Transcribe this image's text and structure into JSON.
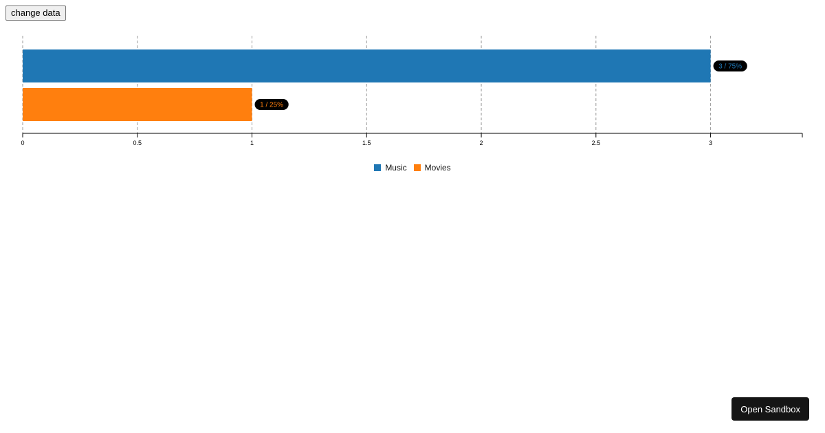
{
  "controls": {
    "change_data_label": "change data",
    "open_sandbox_label": "Open Sandbox"
  },
  "chart_data": {
    "type": "bar",
    "orientation": "horizontal",
    "categories": [
      "Music",
      "Movies"
    ],
    "values": [
      3,
      1
    ],
    "data_labels": [
      "3 / 75%",
      "1 / 25%"
    ],
    "colors": [
      "#1f77b4",
      "#ff7f0e"
    ],
    "xlim": [
      0,
      3.4
    ],
    "x_ticks": [
      0,
      0.5,
      1,
      1.5,
      2,
      2.5,
      3
    ],
    "x_tick_labels": [
      "0",
      "0.5",
      "1",
      "1.5",
      "2",
      "2.5",
      "3"
    ],
    "grid": "vertical-dashed",
    "legend_position": "bottom",
    "legend": [
      "Music",
      "Movies"
    ]
  }
}
